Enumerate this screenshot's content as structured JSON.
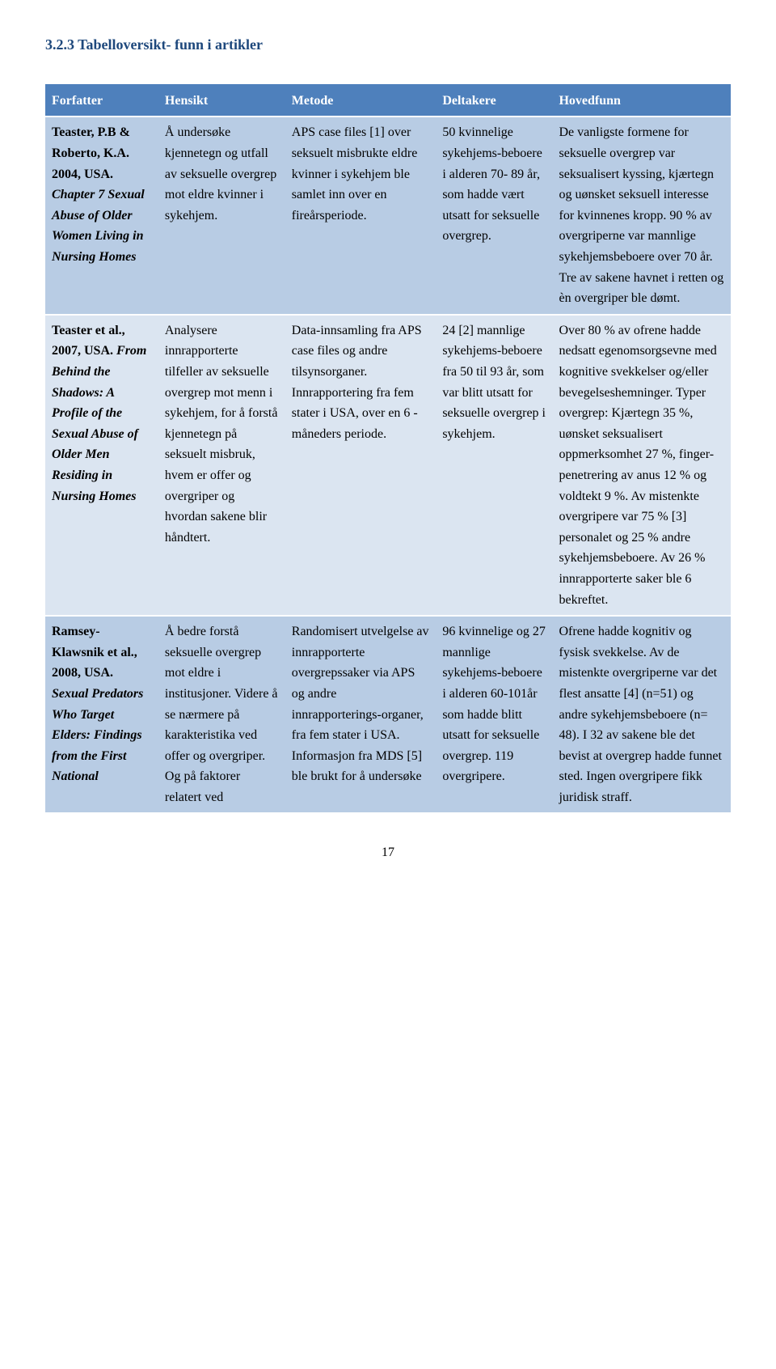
{
  "heading": "3.2.3 Tabelloversikt- funn i artikler",
  "columns": [
    "Forfatter",
    "Hensikt",
    "Metode",
    "Deltakere",
    "Hovedfunn"
  ],
  "colors": {
    "heading": "#1e487c",
    "header_bg": "#4e80bc",
    "header_text": "#ffffff",
    "band_dark": "#b8cce4",
    "band_light": "#dbe5f1",
    "body_text": "#000000",
    "page_bg": "#ffffff"
  },
  "font": {
    "family": "Times New Roman",
    "heading_size_pt": 13,
    "body_size_pt": 12
  },
  "rows": [
    {
      "band": "dark",
      "author_plain": "Teaster, P.B & Roberto, K.A. 2004, USA.",
      "author_title": "Chapter 7 Sexual Abuse of Older Women Living in Nursing Homes",
      "hensikt": "Å undersøke kjennetegn og utfall av seksuelle overgrep mot eldre kvinner i sykehjem.",
      "metode": "APS case files [1] over seksuelt misbrukte eldre kvinner i sykehjem ble samlet inn over en fireårsperiode.",
      "deltakere": "50 kvinnelige sykehjems-beboere i alderen 70- 89 år, som hadde vært utsatt for seksuelle overgrep.",
      "hovedfunn": "De vanligste formene for seksuelle overgrep var seksualisert kyssing, kjærtegn og uønsket seksuell interesse for kvinnenes kropp. 90 % av overgriperne var mannlige sykehjemsbeboere over 70 år. Tre av sakene havnet i retten og èn overgriper ble dømt."
    },
    {
      "band": "light",
      "author_plain": "Teaster et al., 2007, USA.",
      "author_title": "From Behind the Shadows: A Profile of the Sexual Abuse of Older Men Residing in Nursing Homes",
      "hensikt": "Analysere innrapporterte tilfeller av seksuelle overgrep mot menn i sykehjem, for å forstå kjennetegn på seksuelt misbruk, hvem er offer og overgriper og hvordan sakene blir håndtert.",
      "metode": "Data-innsamling fra APS case files og andre tilsynsorganer. Innrapportering fra fem stater i USA, over en 6 - måneders periode.",
      "deltakere": "24 [2] mannlige sykehjems-beboere fra 50 til 93 år, som var blitt utsatt for seksuelle overgrep i sykehjem.",
      "hovedfunn": "Over 80 % av ofrene hadde nedsatt egenomsorgsevne med kognitive svekkelser og/eller bevegelseshemninger. Typer overgrep: Kjærtegn 35 %, uønsket seksualisert oppmerksomhet 27 %, finger-penetrering av anus 12 % og voldtekt 9 %. Av mistenkte overgripere var 75 % [3] personalet og 25 % andre sykehjemsbeboere. Av 26 % innrapporterte saker ble 6 bekreftet."
    },
    {
      "band": "dark",
      "author_plain": "Ramsey-Klawsnik et al., 2008, USA.",
      "author_title": "Sexual Predators Who Target Elders: Findings from the First National",
      "hensikt": "Å bedre forstå seksuelle overgrep mot eldre i institusjoner. Videre å se nærmere på karakteristika ved offer og overgriper. Og på faktorer relatert ved",
      "metode": "Randomisert utvelgelse av innrapporterte overgrepssaker via APS og andre innrapporterings-organer, fra fem stater i USA. Informasjon fra MDS [5] ble brukt for å undersøke",
      "deltakere": "96 kvinnelige og 27 mannlige sykehjems-beboere i alderen 60-101år som hadde blitt utsatt for seksuelle overgrep. 119 overgripere.",
      "hovedfunn": "Ofrene hadde kognitiv og fysisk svekkelse. Av de mistenkte overgriperne var det flest ansatte [4] (n=51) og andre sykehjemsbeboere (n= 48). I 32 av sakene ble det bevist at overgrep hadde funnet sted. Ingen overgripere fikk juridisk straff."
    }
  ],
  "page_number": "17"
}
